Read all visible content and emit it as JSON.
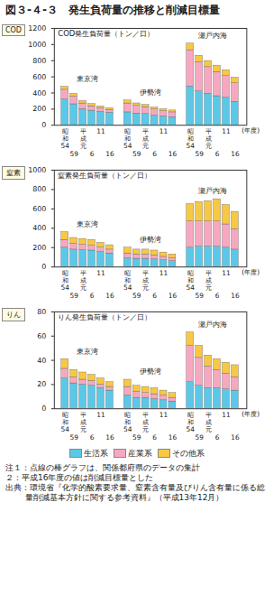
{
  "title": "図３-４-３　発生負荷量の推移と削減目標量",
  "chart_data": [
    {
      "type": "bar",
      "stacked": true,
      "tag": "COD",
      "title": "COD発生負荷量（トン／日）",
      "groups": [
        "東京湾",
        "伊勢湾",
        "瀬戸内海"
      ],
      "categories": [
        "昭和54",
        "59",
        "平成元",
        "6",
        "11",
        "16",
        "昭和54",
        "59",
        "平成元",
        "6",
        "11",
        "16",
        "昭和54",
        "59",
        "平成元",
        "6",
        "11",
        "16"
      ],
      "x_label": "(年度)",
      "ylim": [
        0,
        1200
      ],
      "yticks": [
        0,
        200,
        400,
        600,
        800,
        1000,
        1200
      ],
      "grid": false,
      "series": [
        {
          "name": "生活系",
          "color": "#5bc8e8",
          "values": [
            320,
            260,
            200,
            180,
            165,
            155,
            160,
            145,
            140,
            120,
            110,
            100,
            480,
            420,
            390,
            360,
            340,
            290
          ]
        },
        {
          "name": "産業系",
          "color": "#f7a8c0",
          "values": [
            120,
            95,
            70,
            55,
            45,
            35,
            110,
            95,
            85,
            75,
            65,
            60,
            450,
            360,
            330,
            300,
            270,
            230
          ]
        },
        {
          "name": "その他系",
          "color": "#f7c843",
          "values": [
            37,
            34,
            30,
            28,
            23,
            21,
            37,
            31,
            28,
            25,
            25,
            23,
            82,
            81,
            76,
            77,
            71,
            70
          ]
        }
      ]
    },
    {
      "type": "bar",
      "stacked": true,
      "tag": "窒素",
      "title": "窒素発生負荷量（トン／日）",
      "groups": [
        "東京湾",
        "伊勢湾",
        "瀬戸内海"
      ],
      "categories": [
        "昭和54",
        "59",
        "平成元",
        "6",
        "11",
        "16",
        "昭和54",
        "59",
        "平成元",
        "6",
        "11",
        "16",
        "昭和54",
        "59",
        "平成元",
        "6",
        "11",
        "16"
      ],
      "x_label": "(年度)",
      "ylim": [
        0,
        1000
      ],
      "yticks": [
        0,
        200,
        400,
        600,
        800,
        1000
      ],
      "grid": false,
      "series": [
        {
          "name": "生活系",
          "color": "#5bc8e8",
          "values": [
            200,
            180,
            175,
            170,
            155,
            140,
            90,
            85,
            85,
            80,
            70,
            60,
            200,
            210,
            210,
            210,
            200,
            180
          ]
        },
        {
          "name": "産業系",
          "color": "#f7a8c0",
          "values": [
            80,
            60,
            55,
            50,
            45,
            40,
            50,
            45,
            45,
            40,
            35,
            30,
            270,
            260,
            260,
            260,
            240,
            210
          ]
        },
        {
          "name": "その他系",
          "color": "#f7c843",
          "values": [
            80,
            60,
            60,
            60,
            50,
            45,
            60,
            50,
            50,
            50,
            45,
            40,
            180,
            200,
            210,
            230,
            200,
            180
          ]
        }
      ]
    },
    {
      "type": "bar",
      "stacked": true,
      "tag": "りん",
      "title": "りん発生負荷量（トン／日）",
      "groups": [
        "東京湾",
        "伊勢湾",
        "瀬戸内海"
      ],
      "categories": [
        "昭和54",
        "59",
        "平成元",
        "6",
        "11",
        "16",
        "昭和54",
        "59",
        "平成元",
        "6",
        "11",
        "16",
        "昭和54",
        "59",
        "平成元",
        "6",
        "11",
        "16"
      ],
      "x_label": "(年度)",
      "ylim": [
        0,
        80
      ],
      "yticks": [
        0,
        20,
        40,
        60,
        80
      ],
      "grid": false,
      "series": [
        {
          "name": "生活系",
          "color": "#5bc8e8",
          "values": [
            25,
            21,
            20,
            19,
            17,
            15,
            11,
            9,
            9,
            8,
            7,
            6,
            22,
            19,
            17,
            17,
            16,
            15
          ]
        },
        {
          "name": "産業系",
          "color": "#f7a8c0",
          "values": [
            8,
            5,
            4,
            4,
            3,
            3,
            7,
            5,
            4,
            4,
            4,
            3,
            30,
            23,
            18,
            15,
            13,
            11
          ]
        },
        {
          "name": "その他系",
          "color": "#f7c843",
          "values": [
            8,
            6,
            6,
            5,
            5,
            4,
            6,
            5,
            5,
            5,
            4,
            4,
            11,
            10,
            9,
            9,
            9,
            10
          ]
        }
      ]
    }
  ],
  "notes": [
    "注１：点線の棒グラフは、関係都府県のデータの集計",
    "２：平成16年度の値は削減目標量とした",
    "出典：環境省『化学的酸素要求量、窒素含有量及びりん含有量に係る総量削減基本方針に関する参考資料』（平成13年12月）"
  ]
}
